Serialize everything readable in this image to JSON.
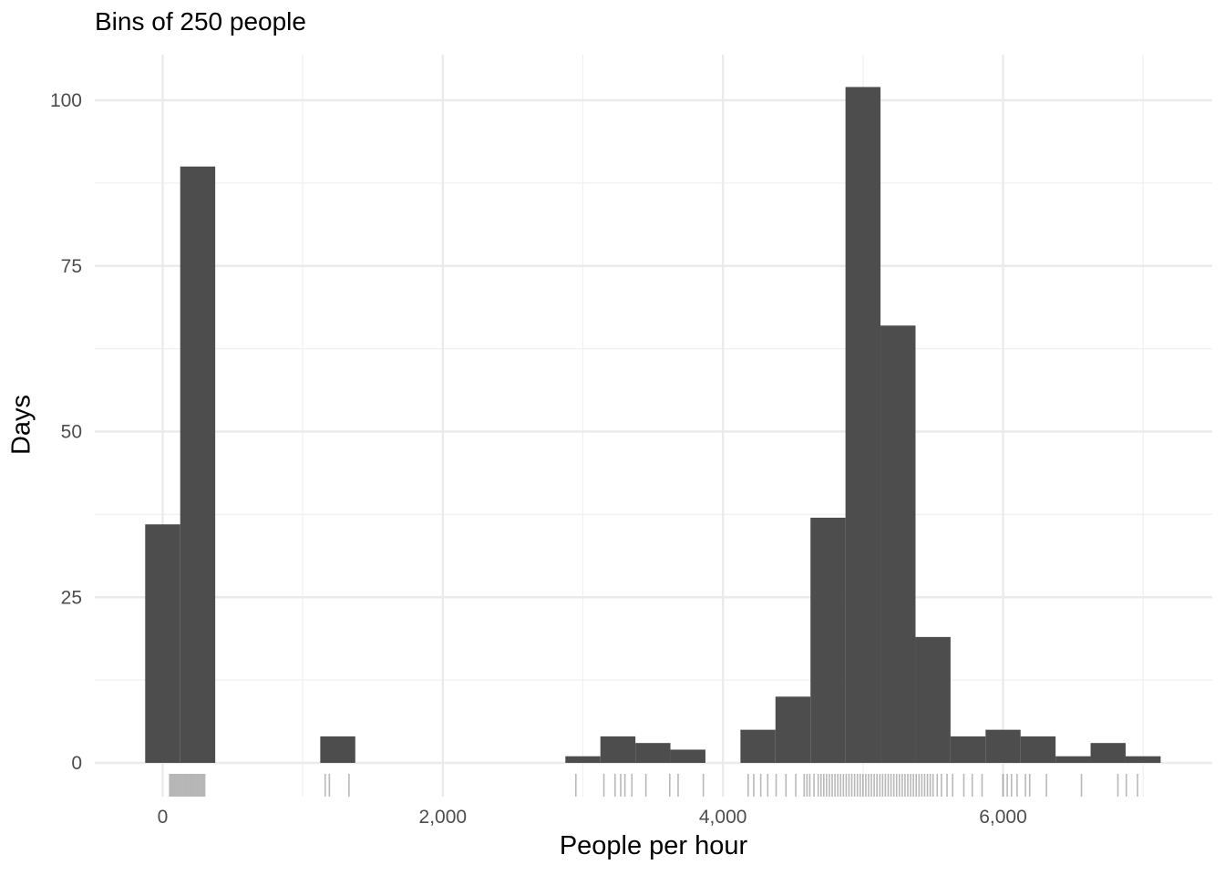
{
  "chart_data": {
    "type": "bar",
    "title": "Bins of 250 people",
    "xlabel": "People per hour",
    "ylabel": "Days",
    "xlim": [
      -600,
      7300
    ],
    "ylim": [
      0,
      107
    ],
    "bin_width": 250,
    "x_ticks": [
      0,
      2000,
      4000,
      6000
    ],
    "x_tick_labels": [
      "0",
      "2,000",
      "4,000",
      "6,000"
    ],
    "y_ticks": [
      0,
      25,
      50,
      75,
      100
    ],
    "y_tick_labels": [
      "0",
      "25",
      "50",
      "75",
      "100"
    ],
    "grid": true,
    "bar_color": "#4d4d4d",
    "bins": [
      {
        "x": 0,
        "count": 36
      },
      {
        "x": 250,
        "count": 90
      },
      {
        "x": 1250,
        "count": 4
      },
      {
        "x": 3000,
        "count": 1
      },
      {
        "x": 3250,
        "count": 4
      },
      {
        "x": 3500,
        "count": 3
      },
      {
        "x": 3750,
        "count": 2
      },
      {
        "x": 4250,
        "count": 5
      },
      {
        "x": 4500,
        "count": 10
      },
      {
        "x": 4750,
        "count": 37
      },
      {
        "x": 5000,
        "count": 102
      },
      {
        "x": 5250,
        "count": 66
      },
      {
        "x": 5500,
        "count": 19
      },
      {
        "x": 5750,
        "count": 4
      },
      {
        "x": 6000,
        "count": 5
      },
      {
        "x": 6250,
        "count": 4
      },
      {
        "x": 6500,
        "count": 1
      },
      {
        "x": 6750,
        "count": 3
      },
      {
        "x": 7000,
        "count": 1
      }
    ],
    "rug": [
      50,
      60,
      70,
      80,
      90,
      100,
      110,
      120,
      130,
      140,
      150,
      160,
      170,
      180,
      190,
      200,
      210,
      220,
      230,
      240,
      250,
      260,
      270,
      280,
      290,
      300,
      1160,
      1190,
      1330,
      2950,
      3150,
      3230,
      3270,
      3300,
      3350,
      3450,
      3620,
      3680,
      3860,
      4180,
      4220,
      4270,
      4320,
      4380,
      4450,
      4520,
      4580,
      4600,
      4620,
      4650,
      4680,
      4700,
      4720,
      4740,
      4760,
      4780,
      4800,
      4820,
      4840,
      4860,
      4880,
      4900,
      4920,
      4940,
      4960,
      4980,
      5000,
      5020,
      5040,
      5060,
      5080,
      5100,
      5120,
      5140,
      5160,
      5180,
      5200,
      5220,
      5240,
      5260,
      5280,
      5300,
      5320,
      5340,
      5360,
      5380,
      5400,
      5420,
      5440,
      5460,
      5480,
      5500,
      5530,
      5560,
      5600,
      5640,
      5720,
      5780,
      5850,
      6000,
      6030,
      6060,
      6100,
      6160,
      6190,
      6310,
      6560,
      6820,
      6880,
      6960
    ]
  }
}
